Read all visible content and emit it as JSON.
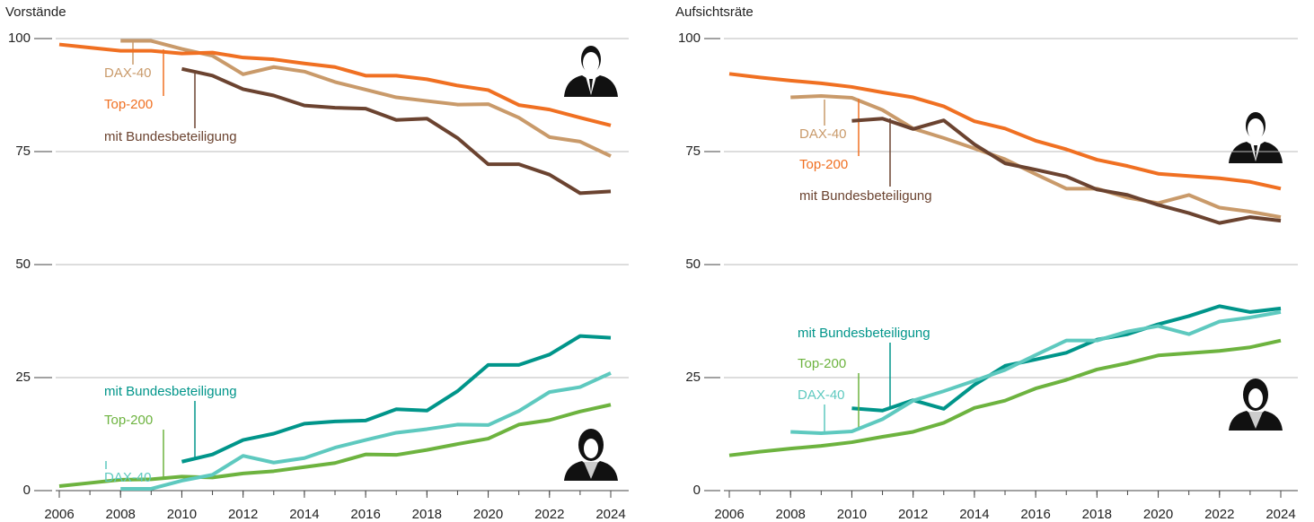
{
  "chart_data": [
    {
      "type": "line",
      "title": "Vorstände",
      "x": [
        2006,
        2007,
        2008,
        2009,
        2010,
        2011,
        2012,
        2013,
        2014,
        2015,
        2016,
        2017,
        2018,
        2019,
        2020,
        2021,
        2022,
        2023,
        2024
      ],
      "xlim": [
        2006,
        2024
      ],
      "xticks": [
        2006,
        2008,
        2010,
        2012,
        2014,
        2016,
        2018,
        2020,
        2022,
        2024
      ],
      "ylim": [
        0,
        100
      ],
      "yticks": [
        0,
        25,
        50,
        75,
        100
      ],
      "grid": true,
      "series": [
        {
          "name": "DAX-40",
          "color": "#c99a6a",
          "values": [
            null,
            null,
            99.5,
            99.5,
            97.7,
            96.2,
            92.1,
            93.7,
            92.7,
            90.4,
            88.7,
            87,
            86.2,
            85.4,
            85.5,
            82.5,
            78.2,
            77.2,
            74
          ]
        },
        {
          "name": "Top-200",
          "color": "#f07022",
          "values": [
            98.7,
            98,
            97.3,
            97.3,
            96.7,
            96.9,
            95.8,
            95.4,
            94.5,
            93.7,
            91.8,
            91.8,
            91,
            89.6,
            88.6,
            85.3,
            84.3,
            82.5,
            80.8
          ]
        },
        {
          "name": "mit Bundesbeteiligung",
          "color": "#6b4330",
          "values": [
            null,
            null,
            null,
            null,
            93.3,
            91.8,
            88.8,
            87.4,
            85.2,
            84.7,
            84.5,
            82,
            82.3,
            78,
            72.2,
            72.2,
            69.9,
            65.8,
            66.2
          ]
        },
        {
          "name": "mit Bundesbeteiligung",
          "color": "#00958a",
          "values": [
            null,
            null,
            null,
            null,
            6.4,
            8,
            11.2,
            12.6,
            14.8,
            15.3,
            15.5,
            18,
            17.7,
            22,
            27.8,
            27.8,
            30.1,
            34.2,
            33.8
          ]
        },
        {
          "name": "Top-200",
          "color": "#6db33f",
          "values": [
            1,
            1.7,
            2.4,
            2.5,
            3.1,
            2.9,
            3.8,
            4.3,
            5.2,
            6.1,
            8,
            7.9,
            9,
            10.3,
            11.5,
            14.6,
            15.6,
            17.5,
            19
          ]
        },
        {
          "name": "DAX-40",
          "color": "#5ec9bf",
          "values": [
            null,
            null,
            0.4,
            0.4,
            2.2,
            3.5,
            7.7,
            6.2,
            7.2,
            9.5,
            11.2,
            12.8,
            13.6,
            14.6,
            14.5,
            17.6,
            21.8,
            22.9,
            26
          ]
        }
      ]
    },
    {
      "type": "line",
      "title": "Aufsichtsräte",
      "x": [
        2006,
        2007,
        2008,
        2009,
        2010,
        2011,
        2012,
        2013,
        2014,
        2015,
        2016,
        2017,
        2018,
        2019,
        2020,
        2021,
        2022,
        2023,
        2024
      ],
      "xlim": [
        2006,
        2024
      ],
      "xticks": [
        2006,
        2008,
        2010,
        2012,
        2014,
        2016,
        2018,
        2020,
        2022,
        2024
      ],
      "ylim": [
        0,
        100
      ],
      "yticks": [
        0,
        25,
        50,
        75,
        100
      ],
      "grid": true,
      "series": [
        {
          "name": "DAX-40",
          "color": "#c99a6a",
          "values": [
            null,
            null,
            87,
            87.3,
            86.9,
            84.2,
            80.1,
            78,
            75.7,
            73.3,
            70,
            66.8,
            66.8,
            64.8,
            63.6,
            65.4,
            62.6,
            61.7,
            60.5
          ]
        },
        {
          "name": "Top-200",
          "color": "#f07022",
          "values": [
            92.2,
            91.4,
            90.7,
            90.1,
            89.3,
            88.1,
            87,
            85,
            81.7,
            80.1,
            77.4,
            75.5,
            73.2,
            71.8,
            70.1,
            69.6,
            69.1,
            68.3,
            66.8
          ]
        },
        {
          "name": "mit Bundesbeteiligung",
          "color": "#6b4330",
          "values": [
            null,
            null,
            null,
            null,
            81.8,
            82.3,
            80,
            81.9,
            76.6,
            72.4,
            71,
            69.5,
            66.6,
            65.4,
            63.2,
            61.4,
            59.2,
            60.5,
            59.7
          ]
        },
        {
          "name": "mit Bundesbeteiligung",
          "color": "#00958a",
          "values": [
            null,
            null,
            null,
            null,
            18.2,
            17.7,
            20,
            18.1,
            23.4,
            27.6,
            29,
            30.5,
            33.4,
            34.6,
            36.8,
            38.6,
            40.8,
            39.5,
            40.3
          ]
        },
        {
          "name": "Top-200",
          "color": "#6db33f",
          "values": [
            7.8,
            8.6,
            9.3,
            9.9,
            10.7,
            11.9,
            13,
            15,
            18.3,
            19.9,
            22.6,
            24.5,
            26.8,
            28.2,
            29.9,
            30.4,
            30.9,
            31.7,
            33.2
          ]
        },
        {
          "name": "DAX-40",
          "color": "#5ec9bf",
          "values": [
            null,
            null,
            13,
            12.7,
            13.1,
            15.8,
            19.9,
            22,
            24.3,
            26.7,
            30,
            33.2,
            33.2,
            35.2,
            36.4,
            34.6,
            37.4,
            38.3,
            39.5
          ]
        }
      ]
    }
  ]
}
